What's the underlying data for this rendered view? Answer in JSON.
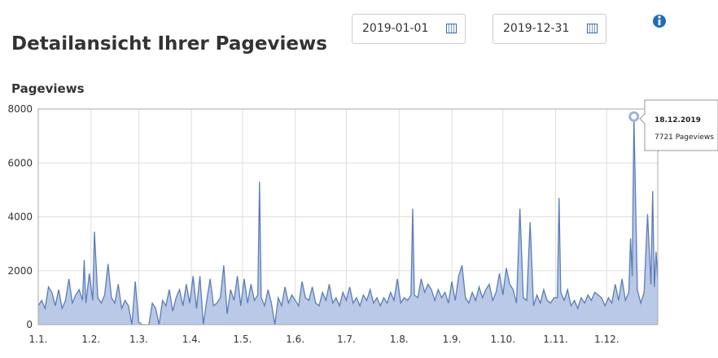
{
  "header": {
    "title": "Detailansicht Ihrer Pageviews",
    "date_from": "2019-01-01",
    "date_to": "2019-12-31"
  },
  "chart_data": {
    "type": "area",
    "title": "Pageviews",
    "x": [
      0,
      2,
      4,
      6,
      8,
      10,
      12,
      14,
      16,
      18,
      20,
      22,
      24,
      26,
      27,
      28,
      30,
      32,
      33,
      35,
      37,
      39,
      41,
      43,
      45,
      47,
      49,
      51,
      53,
      55,
      57,
      59,
      61,
      63,
      65,
      67,
      69,
      71,
      73,
      75,
      77,
      79,
      81,
      83,
      85,
      87,
      89,
      91,
      93,
      95,
      97,
      99,
      101,
      103,
      105,
      107,
      109,
      111,
      113,
      115,
      117,
      119,
      121,
      123,
      125,
      127,
      129,
      130,
      131,
      133,
      135,
      137,
      139,
      141,
      143,
      145,
      147,
      149,
      151,
      153,
      155,
      157,
      159,
      161,
      163,
      165,
      167,
      169,
      171,
      173,
      175,
      177,
      179,
      181,
      183,
      185,
      187,
      189,
      191,
      193,
      195,
      197,
      199,
      201,
      203,
      205,
      207,
      209,
      211,
      213,
      215,
      217,
      219,
      220,
      221,
      223,
      225,
      227,
      229,
      231,
      233,
      235,
      237,
      239,
      241,
      243,
      245,
      247,
      249,
      251,
      253,
      255,
      257,
      259,
      261,
      263,
      265,
      267,
      269,
      271,
      273,
      275,
      277,
      279,
      281,
      283,
      285,
      287,
      289,
      291,
      293,
      295,
      297,
      299,
      301,
      303,
      305,
      306,
      307,
      309,
      311,
      313,
      315,
      317,
      319,
      321,
      323,
      325,
      327,
      329,
      331,
      333,
      335,
      337,
      339,
      341,
      343,
      345,
      347,
      348,
      349,
      350,
      352,
      354,
      356,
      358,
      360,
      361,
      362,
      363,
      364
    ],
    "values": [
      700,
      900,
      600,
      1400,
      1200,
      700,
      1300,
      600,
      900,
      1700,
      800,
      1100,
      1300,
      900,
      2400,
      800,
      1900,
      900,
      3450,
      1000,
      800,
      1100,
      2250,
      1000,
      800,
      1500,
      600,
      900,
      700,
      0,
      1600,
      100,
      0,
      0,
      0,
      800,
      600,
      0,
      900,
      700,
      1300,
      500,
      1000,
      1300,
      700,
      1500,
      800,
      1800,
      600,
      1800,
      0,
      900,
      1700,
      700,
      800,
      1000,
      2200,
      400,
      1300,
      900,
      1800,
      700,
      1700,
      800,
      1500,
      900,
      1100,
      5300,
      1000,
      700,
      1300,
      800,
      0,
      1000,
      700,
      1400,
      800,
      1100,
      900,
      700,
      1600,
      1000,
      900,
      1400,
      800,
      700,
      1200,
      900,
      1500,
      800,
      1000,
      700,
      1200,
      900,
      1400,
      800,
      1000,
      700,
      1100,
      900,
      1300,
      800,
      1000,
      700,
      1000,
      800,
      1200,
      900,
      1700,
      800,
      1000,
      900,
      1100,
      4300,
      1100,
      1000,
      1700,
      1200,
      1500,
      1300,
      900,
      1300,
      1000,
      1200,
      800,
      1600,
      900,
      1800,
      2200,
      1000,
      800,
      1200,
      900,
      1400,
      1000,
      1300,
      1500,
      900,
      1200,
      1900,
      1100,
      2100,
      1500,
      1300,
      800,
      4300,
      1000,
      900,
      3800,
      700,
      1100,
      800,
      1300,
      900,
      800,
      1000,
      1000,
      4700,
      1200,
      900,
      1300,
      700,
      900,
      600,
      1000,
      800,
      1100,
      900,
      1200,
      1100,
      1000,
      700,
      1000,
      800,
      1500,
      900,
      1700,
      900,
      1200,
      3200,
      1800,
      7721,
      1300,
      800,
      1200,
      4100,
      1500,
      4950,
      1400,
      2700,
      1700
    ],
    "color": "#5b7db8",
    "fill": "#b9c9e6",
    "xlim": [
      0,
      364
    ],
    "xticks": [
      {
        "value": 0,
        "label": "1.1."
      },
      {
        "value": 31,
        "label": "1.2."
      },
      {
        "value": 59,
        "label": "1.3."
      },
      {
        "value": 90,
        "label": "1.4."
      },
      {
        "value": 120,
        "label": "1.5."
      },
      {
        "value": 151,
        "label": "1.6."
      },
      {
        "value": 181,
        "label": "1.7."
      },
      {
        "value": 212,
        "label": "1.8."
      },
      {
        "value": 243,
        "label": "1.9."
      },
      {
        "value": 273,
        "label": "1.10."
      },
      {
        "value": 304,
        "label": "1.11."
      },
      {
        "value": 334,
        "label": "1.12."
      }
    ],
    "ylim": [
      0,
      8000
    ],
    "yticks": [
      0,
      2000,
      4000,
      6000,
      8000
    ],
    "grid": true,
    "tooltip": {
      "title": "18.12.2019",
      "text": "7721 Pageviews"
    }
  }
}
